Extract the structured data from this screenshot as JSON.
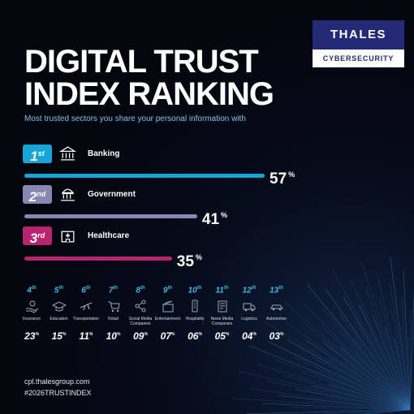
{
  "brand": {
    "name": "THALES",
    "division": "CYBERSECURITY"
  },
  "title": "DIGITAL TRUST INDEX RANKING",
  "subtitle": "Most trusted sectors you share your personal information with",
  "colors": {
    "first": "#16a5d6",
    "second": "#8a86b4",
    "third": "#b8246f",
    "accent": "#3fb8e6",
    "logo": "#242a75"
  },
  "chart_data": {
    "type": "bar",
    "unit": "%",
    "top3": [
      {
        "rank": "1",
        "rank_suffix": "st",
        "label": "Banking",
        "value": 57,
        "display": "57",
        "icon": "bank-icon"
      },
      {
        "rank": "2",
        "rank_suffix": "nd",
        "label": "Government",
        "value": 41,
        "display": "41",
        "icon": "government-building-icon"
      },
      {
        "rank": "3",
        "rank_suffix": "rd",
        "label": "Healthcare",
        "value": 35,
        "display": "35",
        "icon": "hospital-icon"
      }
    ],
    "others": [
      {
        "rank": "4",
        "rank_suffix": "th",
        "label": "Insurance",
        "value": 23,
        "display": "23",
        "icon": "insurance-hand-icon"
      },
      {
        "rank": "5",
        "rank_suffix": "th",
        "label": "Education",
        "value": 15,
        "display": "15",
        "icon": "graduation-cap-icon"
      },
      {
        "rank": "6",
        "rank_suffix": "th",
        "label": "Transportation",
        "value": 11,
        "display": "11",
        "icon": "airplane-icon"
      },
      {
        "rank": "7",
        "rank_suffix": "th",
        "label": "Retail",
        "value": 10,
        "display": "10",
        "icon": "shopping-cart-icon"
      },
      {
        "rank": "8",
        "rank_suffix": "th",
        "label": "Social Media Companies",
        "value": 9,
        "display": "09",
        "icon": "share-icon"
      },
      {
        "rank": "9",
        "rank_suffix": "th",
        "label": "Entertainment",
        "value": 7,
        "display": "07",
        "icon": "clapperboard-icon"
      },
      {
        "rank": "10",
        "rank_suffix": "th",
        "label": "Hospitality",
        "value": 6,
        "display": "06",
        "icon": "hotel-icon"
      },
      {
        "rank": "11",
        "rank_suffix": "th",
        "label": "News Media Companies",
        "value": 5,
        "display": "05",
        "icon": "newspaper-icon"
      },
      {
        "rank": "12",
        "rank_suffix": "th",
        "label": "Logistics",
        "value": 4,
        "display": "04",
        "icon": "truck-icon"
      },
      {
        "rank": "13",
        "rank_suffix": "th",
        "label": "Automotive",
        "value": 3,
        "display": "03",
        "icon": "car-icon"
      }
    ]
  },
  "footer": {
    "url": "cpl.thalesgroup.com",
    "hashtag": "#2026TRUSTINDEX"
  }
}
